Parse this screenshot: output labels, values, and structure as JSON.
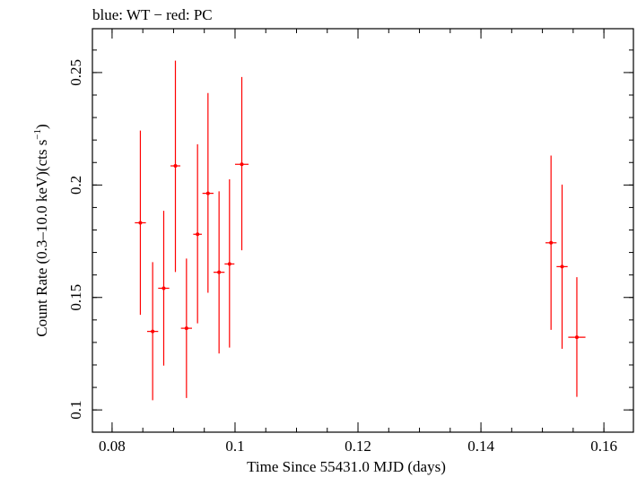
{
  "chart_data": {
    "type": "scatter",
    "title": "blue: WT − red: PC",
    "xlabel": "Time Since 55431.0 MJD (days)",
    "ylabel_main": "Count Rate (0.3–10.0 keV)(cts s",
    "ylabel_sup": "−1",
    "ylabel_end": ")",
    "xlim": [
      0.0768,
      0.1648
    ],
    "ylim": [
      0.0901,
      0.2695
    ],
    "x_ticks": [
      0.08,
      0.1,
      0.12,
      0.14,
      0.16
    ],
    "x_tick_labels": [
      "0.08",
      "0.1",
      "0.12",
      "0.14",
      "0.16"
    ],
    "y_ticks": [
      0.1,
      0.15,
      0.2,
      0.25
    ],
    "y_tick_labels": [
      "0.1",
      "0.15",
      "0.2",
      "0.25"
    ],
    "grid": false,
    "series": [
      {
        "color": "#ff0000",
        "points": [
          {
            "x": 0.0846,
            "y": 0.1832,
            "xerr": 0.0009,
            "ylo": 0.1423,
            "yhi": 0.2242
          },
          {
            "x": 0.0866,
            "y": 0.1349,
            "xerr": 0.0009,
            "ylo": 0.1043,
            "yhi": 0.1657
          },
          {
            "x": 0.0884,
            "y": 0.1541,
            "xerr": 0.0009,
            "ylo": 0.1197,
            "yhi": 0.1885
          },
          {
            "x": 0.0903,
            "y": 0.2085,
            "xerr": 0.0008,
            "ylo": 0.1613,
            "yhi": 0.2553
          },
          {
            "x": 0.0921,
            "y": 0.1363,
            "xerr": 0.0009,
            "ylo": 0.1053,
            "yhi": 0.1673
          },
          {
            "x": 0.0939,
            "y": 0.1781,
            "xerr": 0.0007,
            "ylo": 0.1385,
            "yhi": 0.2181
          },
          {
            "x": 0.0956,
            "y": 0.1963,
            "xerr": 0.0009,
            "ylo": 0.1521,
            "yhi": 0.2409
          },
          {
            "x": 0.0974,
            "y": 0.1612,
            "xerr": 0.0009,
            "ylo": 0.1251,
            "yhi": 0.1972
          },
          {
            "x": 0.0991,
            "y": 0.1649,
            "xerr": 0.0008,
            "ylo": 0.1277,
            "yhi": 0.2025
          },
          {
            "x": 0.1011,
            "y": 0.2092,
            "xerr": 0.0011,
            "ylo": 0.171,
            "yhi": 0.248
          },
          {
            "x": 0.1514,
            "y": 0.1743,
            "xerr": 0.0009,
            "ylo": 0.1356,
            "yhi": 0.2131
          },
          {
            "x": 0.1532,
            "y": 0.1637,
            "xerr": 0.0009,
            "ylo": 0.1272,
            "yhi": 0.2002
          },
          {
            "x": 0.1556,
            "y": 0.1323,
            "xerr": 0.0014,
            "ylo": 0.1058,
            "yhi": 0.159
          }
        ]
      }
    ]
  }
}
